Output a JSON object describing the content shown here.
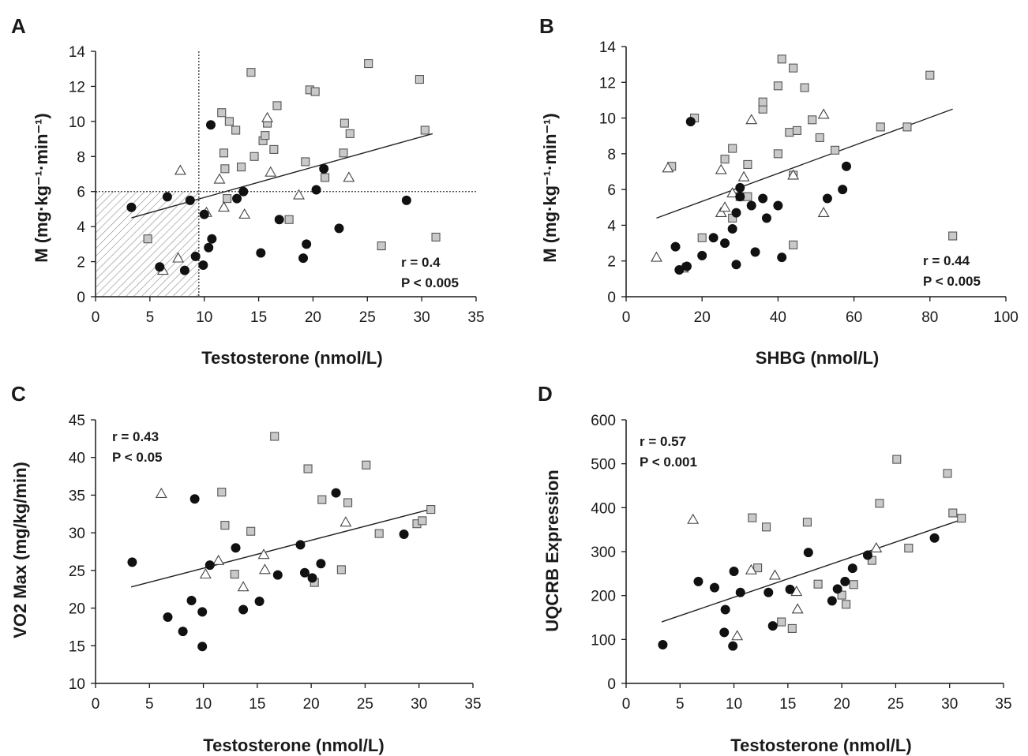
{
  "chart_data": [
    {
      "type": "scatter",
      "panel": "A",
      "xlabel": "Testosterone (nmol/L)",
      "ylabel": "M (mg·kg⁻¹·min⁻¹)",
      "xlim": [
        0,
        35
      ],
      "ylim": [
        0,
        14
      ],
      "xticks": [
        0,
        5,
        10,
        15,
        20,
        25,
        30,
        35
      ],
      "yticks": [
        0,
        2,
        4,
        6,
        8,
        10,
        12,
        14
      ],
      "stats": [
        "r = 0.4",
        "P < 0.005"
      ],
      "stats_position": "bottom-right",
      "regression": [
        [
          3.3,
          4.5
        ],
        [
          31.0,
          9.3
        ]
      ],
      "reference_lines": {
        "x": 9.5,
        "y": 6
      },
      "shaded_region": {
        "x": [
          0,
          9.5
        ],
        "y": [
          0,
          6
        ]
      },
      "series": [
        {
          "marker": "filled-circle",
          "points": [
            [
              3.3,
              5.1
            ],
            [
              5.9,
              1.7
            ],
            [
              6.6,
              5.7
            ],
            [
              8.2,
              1.5
            ],
            [
              8.7,
              5.5
            ],
            [
              9.2,
              2.3
            ],
            [
              9.9,
              1.8
            ],
            [
              10.0,
              4.7
            ],
            [
              10.4,
              2.8
            ],
            [
              10.6,
              9.8
            ],
            [
              10.7,
              3.3
            ],
            [
              13.0,
              5.6
            ],
            [
              13.6,
              6.0
            ],
            [
              15.2,
              2.5
            ],
            [
              16.9,
              4.4
            ],
            [
              19.1,
              2.2
            ],
            [
              19.4,
              3.0
            ],
            [
              20.3,
              6.1
            ],
            [
              21.0,
              7.3
            ],
            [
              22.4,
              3.9
            ],
            [
              28.6,
              5.5
            ]
          ]
        },
        {
          "marker": "open-square",
          "points": [
            [
              4.8,
              3.3
            ],
            [
              11.6,
              10.5
            ],
            [
              11.8,
              8.2
            ],
            [
              11.9,
              7.3
            ],
            [
              12.1,
              5.6
            ],
            [
              12.3,
              10.0
            ],
            [
              12.9,
              9.5
            ],
            [
              13.4,
              7.4
            ],
            [
              14.3,
              12.8
            ],
            [
              14.6,
              8.0
            ],
            [
              15.4,
              8.9
            ],
            [
              15.6,
              9.2
            ],
            [
              15.8,
              9.9
            ],
            [
              16.4,
              8.4
            ],
            [
              16.7,
              10.9
            ],
            [
              17.8,
              4.4
            ],
            [
              19.3,
              7.7
            ],
            [
              19.7,
              11.8
            ],
            [
              20.2,
              11.7
            ],
            [
              21.1,
              6.8
            ],
            [
              22.8,
              8.2
            ],
            [
              22.9,
              9.9
            ],
            [
              23.4,
              9.3
            ],
            [
              25.1,
              13.3
            ],
            [
              26.3,
              2.9
            ],
            [
              29.8,
              12.4
            ],
            [
              30.3,
              9.5
            ],
            [
              31.3,
              3.4
            ]
          ]
        },
        {
          "marker": "open-triangle",
          "points": [
            [
              6.2,
              1.5
            ],
            [
              7.6,
              2.2
            ],
            [
              7.8,
              7.2
            ],
            [
              10.2,
              4.8
            ],
            [
              11.4,
              6.7
            ],
            [
              11.8,
              5.1
            ],
            [
              13.7,
              4.7
            ],
            [
              15.8,
              10.2
            ],
            [
              16.1,
              7.1
            ],
            [
              18.7,
              5.8
            ],
            [
              23.3,
              6.8
            ]
          ]
        }
      ]
    },
    {
      "type": "scatter",
      "panel": "B",
      "xlabel": "SHBG (nmol/L)",
      "ylabel": "M (mg·kg⁻¹·min⁻¹)",
      "xlim": [
        0,
        100
      ],
      "ylim": [
        0,
        14
      ],
      "xticks": [
        0,
        20,
        40,
        60,
        80,
        100
      ],
      "yticks": [
        0,
        2,
        4,
        6,
        8,
        10,
        12,
        14
      ],
      "stats": [
        "r = 0.44",
        "P < 0.005"
      ],
      "stats_position": "bottom-right",
      "regression": [
        [
          8,
          4.4
        ],
        [
          86,
          10.5
        ]
      ],
      "series": [
        {
          "marker": "filled-circle",
          "points": [
            [
              13,
              2.8
            ],
            [
              14,
              1.5
            ],
            [
              16,
              1.7
            ],
            [
              17,
              9.8
            ],
            [
              20,
              2.3
            ],
            [
              23,
              3.3
            ],
            [
              26,
              3.0
            ],
            [
              28,
              3.8
            ],
            [
              29,
              4.7
            ],
            [
              29,
              1.8
            ],
            [
              30,
              5.6
            ],
            [
              30,
              6.1
            ],
            [
              33,
              5.1
            ],
            [
              34,
              2.5
            ],
            [
              36,
              5.5
            ],
            [
              37,
              4.4
            ],
            [
              40,
              5.1
            ],
            [
              41,
              2.2
            ],
            [
              53,
              5.5
            ],
            [
              57,
              6.0
            ],
            [
              58,
              7.3
            ]
          ]
        },
        {
          "marker": "open-square",
          "points": [
            [
              12,
              7.3
            ],
            [
              18,
              10.0
            ],
            [
              20,
              3.3
            ],
            [
              26,
              7.7
            ],
            [
              28,
              8.3
            ],
            [
              28,
              4.4
            ],
            [
              30,
              5.6
            ],
            [
              32,
              5.6
            ],
            [
              32,
              7.4
            ],
            [
              36,
              10.5
            ],
            [
              36,
              10.9
            ],
            [
              40,
              11.8
            ],
            [
              40,
              8.0
            ],
            [
              41,
              13.3
            ],
            [
              43,
              9.2
            ],
            [
              44,
              6.8
            ],
            [
              44,
              2.9
            ],
            [
              44,
              12.8
            ],
            [
              45,
              9.3
            ],
            [
              47,
              11.7
            ],
            [
              49,
              9.9
            ],
            [
              51,
              8.9
            ],
            [
              55,
              8.2
            ],
            [
              67,
              9.5
            ],
            [
              74,
              9.5
            ],
            [
              80,
              12.4
            ],
            [
              86,
              3.4
            ]
          ]
        },
        {
          "marker": "open-triangle",
          "points": [
            [
              8,
              2.2
            ],
            [
              11,
              7.2
            ],
            [
              15,
              1.6
            ],
            [
              25,
              4.7
            ],
            [
              25,
              7.1
            ],
            [
              26,
              5.0
            ],
            [
              28,
              5.8
            ],
            [
              31,
              6.7
            ],
            [
              33,
              9.9
            ],
            [
              44,
              6.8
            ],
            [
              52,
              10.2
            ],
            [
              52,
              4.7
            ]
          ]
        }
      ]
    },
    {
      "type": "scatter",
      "panel": "C",
      "xlabel": "Testosterone (nmol/L)",
      "ylabel": "VO2 Max (mg/kg/min)",
      "xlim": [
        0,
        35
      ],
      "ylim": [
        10,
        45
      ],
      "xticks": [
        0,
        5,
        10,
        15,
        20,
        25,
        30,
        35
      ],
      "yticks": [
        10,
        15,
        20,
        25,
        30,
        35,
        40,
        45
      ],
      "stats": [
        "r = 0.43",
        "P < 0.05"
      ],
      "stats_position": "top-left",
      "regression": [
        [
          3.3,
          22.8
        ],
        [
          31.0,
          33.1
        ]
      ],
      "series": [
        {
          "marker": "filled-circle",
          "points": [
            [
              3.4,
              26.1
            ],
            [
              6.7,
              18.8
            ],
            [
              8.1,
              16.9
            ],
            [
              8.9,
              21.0
            ],
            [
              9.2,
              34.5
            ],
            [
              9.9,
              19.5
            ],
            [
              9.9,
              14.9
            ],
            [
              10.6,
              25.7
            ],
            [
              13.0,
              28.0
            ],
            [
              13.7,
              19.8
            ],
            [
              15.2,
              20.9
            ],
            [
              16.9,
              24.4
            ],
            [
              19.0,
              28.4
            ],
            [
              19.4,
              24.7
            ],
            [
              20.1,
              24.0
            ],
            [
              20.9,
              25.9
            ],
            [
              22.3,
              35.3
            ],
            [
              28.6,
              29.8
            ]
          ]
        },
        {
          "marker": "open-square",
          "points": [
            [
              11.7,
              35.4
            ],
            [
              12.0,
              31.0
            ],
            [
              12.9,
              24.5
            ],
            [
              14.4,
              30.2
            ],
            [
              16.6,
              42.8
            ],
            [
              19.7,
              38.5
            ],
            [
              20.3,
              23.4
            ],
            [
              21.0,
              34.4
            ],
            [
              22.8,
              25.1
            ],
            [
              23.4,
              34.0
            ],
            [
              25.1,
              39.0
            ],
            [
              26.3,
              29.9
            ],
            [
              29.8,
              31.2
            ],
            [
              30.3,
              31.6
            ],
            [
              31.1,
              33.1
            ]
          ]
        },
        {
          "marker": "open-triangle",
          "points": [
            [
              6.1,
              35.2
            ],
            [
              10.2,
              24.5
            ],
            [
              11.4,
              26.3
            ],
            [
              13.7,
              22.8
            ],
            [
              15.6,
              27.1
            ],
            [
              15.7,
              25.1
            ],
            [
              23.2,
              31.4
            ]
          ]
        }
      ]
    },
    {
      "type": "scatter",
      "panel": "D",
      "xlabel": "Testosterone (nmol/L)",
      "ylabel": "UQCRB Expression",
      "xlim": [
        0,
        35
      ],
      "ylim": [
        0,
        600
      ],
      "xticks": [
        0,
        5,
        10,
        15,
        20,
        25,
        30,
        35
      ],
      "yticks": [
        0,
        100,
        200,
        300,
        400,
        500,
        600
      ],
      "stats": [
        "r = 0.57",
        "P < 0.001"
      ],
      "stats_position": "top-left",
      "regression": [
        [
          3.3,
          140
        ],
        [
          31.0,
          372
        ]
      ],
      "series": [
        {
          "marker": "filled-circle",
          "points": [
            [
              3.4,
              88
            ],
            [
              6.7,
              232
            ],
            [
              8.2,
              218
            ],
            [
              9.1,
              116
            ],
            [
              9.2,
              168
            ],
            [
              9.9,
              85
            ],
            [
              10.0,
              255
            ],
            [
              10.6,
              207
            ],
            [
              13.2,
              207
            ],
            [
              13.6,
              131
            ],
            [
              15.2,
              214
            ],
            [
              16.9,
              298
            ],
            [
              19.1,
              188
            ],
            [
              19.6,
              215
            ],
            [
              20.3,
              232
            ],
            [
              21.0,
              262
            ],
            [
              22.4,
              292
            ],
            [
              28.6,
              331
            ]
          ]
        },
        {
          "marker": "open-square",
          "points": [
            [
              11.7,
              377
            ],
            [
              12.2,
              263
            ],
            [
              13.0,
              356
            ],
            [
              14.4,
              140
            ],
            [
              15.4,
              125
            ],
            [
              16.8,
              367
            ],
            [
              17.8,
              226
            ],
            [
              20.0,
              201
            ],
            [
              20.4,
              180
            ],
            [
              21.1,
              225
            ],
            [
              22.8,
              280
            ],
            [
              23.5,
              410
            ],
            [
              25.1,
              510
            ],
            [
              26.2,
              308
            ],
            [
              29.8,
              478
            ],
            [
              30.3,
              388
            ],
            [
              31.1,
              376
            ]
          ]
        },
        {
          "marker": "open-triangle",
          "points": [
            [
              6.2,
              373
            ],
            [
              10.3,
              108
            ],
            [
              11.6,
              258
            ],
            [
              13.8,
              246
            ],
            [
              15.8,
              209
            ],
            [
              15.9,
              169
            ],
            [
              23.2,
              308
            ]
          ]
        }
      ]
    }
  ],
  "panels": {
    "a": {
      "letter": "A"
    },
    "b": {
      "letter": "B"
    },
    "c": {
      "letter": "C"
    },
    "d": {
      "letter": "D"
    }
  },
  "colors": {
    "axis": "#1a1a1a",
    "filled_marker": "#111111",
    "square_fill": "#c9c9c9",
    "triangle_fill": "#ffffff",
    "hatch": "#8a8a8a"
  }
}
